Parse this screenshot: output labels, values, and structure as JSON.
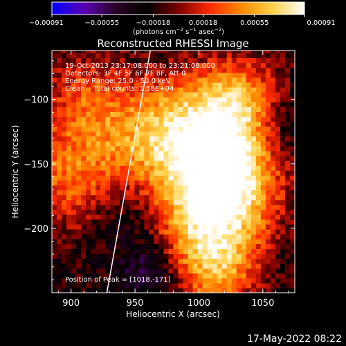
{
  "chart_data": {
    "type": "heatmap",
    "title": "Reconstructed RHESSI Image",
    "xlabel": "Heliocentric X (arcsec)",
    "ylabel": "Heliocentric Y (arcsec)",
    "xlim": [
      885,
      1075
    ],
    "ylim": [
      -250,
      -62
    ],
    "x_ticks": [
      900,
      950,
      1000,
      1050
    ],
    "y_ticks": [
      -100,
      -150,
      -200
    ],
    "x_tick_labels": [
      "900",
      "950",
      "1000",
      "1050"
    ],
    "y_tick_labels": [
      "−100",
      "−150",
      "−200"
    ],
    "colorbar": {
      "range": [
        -0.00091,
        0.00091
      ],
      "ticks": [
        -0.00091,
        -0.00055,
        -0.00018,
        0.00018,
        0.00055,
        0.00091
      ],
      "tick_labels": [
        "−0.00091",
        "−0.00055",
        "−0.00018",
        "0.00018",
        "0.00055",
        "0.00091"
      ],
      "unit_label_parts": {
        "prefix": "(photons cm",
        "exp1": "−2",
        "mid1": " s",
        "exp2": "−1",
        "mid2": " asec",
        "exp3": "−2",
        "suffix": ")"
      },
      "colors": [
        "#0000ff",
        "#5a00b4",
        "#2a0028",
        "#000000",
        "#7a0000",
        "#ff2a00",
        "#ff8a00",
        "#ffd24a",
        "#ffffff"
      ]
    },
    "annotations": {
      "time_range": "19-Oct-2013 23:17:08.000 to 23:21:08.000",
      "detectors": "Detectors: 3F 4F 5F 6F 7F 8F, Att 0",
      "energy_range": "Energy Range: 25.0 - 50.0 keV",
      "clean_counts": "Clean    Total counts: 1.58E+04",
      "peak": "Position of Peak = [1018,-171]"
    },
    "peak_position": [
      1018,
      -171
    ],
    "limb_line": [
      [
        928,
        -250
      ],
      [
        962,
        -62
      ]
    ],
    "emission_sources": [
      {
        "x": 1018,
        "y": -171,
        "intensity": 1.0,
        "spread": 28
      },
      {
        "x": 1005,
        "y": -130,
        "intensity": 0.85,
        "spread": 32
      },
      {
        "x": 1030,
        "y": -105,
        "intensity": 0.6,
        "spread": 25
      },
      {
        "x": 1000,
        "y": -210,
        "intensity": 0.65,
        "spread": 30
      },
      {
        "x": 960,
        "y": -130,
        "intensity": 0.55,
        "spread": 28
      },
      {
        "x": 900,
        "y": -160,
        "intensity": 0.6,
        "spread": 30
      },
      {
        "x": 910,
        "y": -100,
        "intensity": 0.45,
        "spread": 25
      },
      {
        "x": 1015,
        "y": -235,
        "intensity": 0.45,
        "spread": 20
      }
    ],
    "negative_sources": [
      {
        "x": 960,
        "y": -235,
        "intensity": 0.45,
        "spread": 18
      },
      {
        "x": 1060,
        "y": -120,
        "intensity": 0.3,
        "spread": 18
      },
      {
        "x": 940,
        "y": -190,
        "intensity": 0.25,
        "spread": 20
      }
    ]
  },
  "footer": {
    "timestamp": "17-May-2022 08:22"
  }
}
